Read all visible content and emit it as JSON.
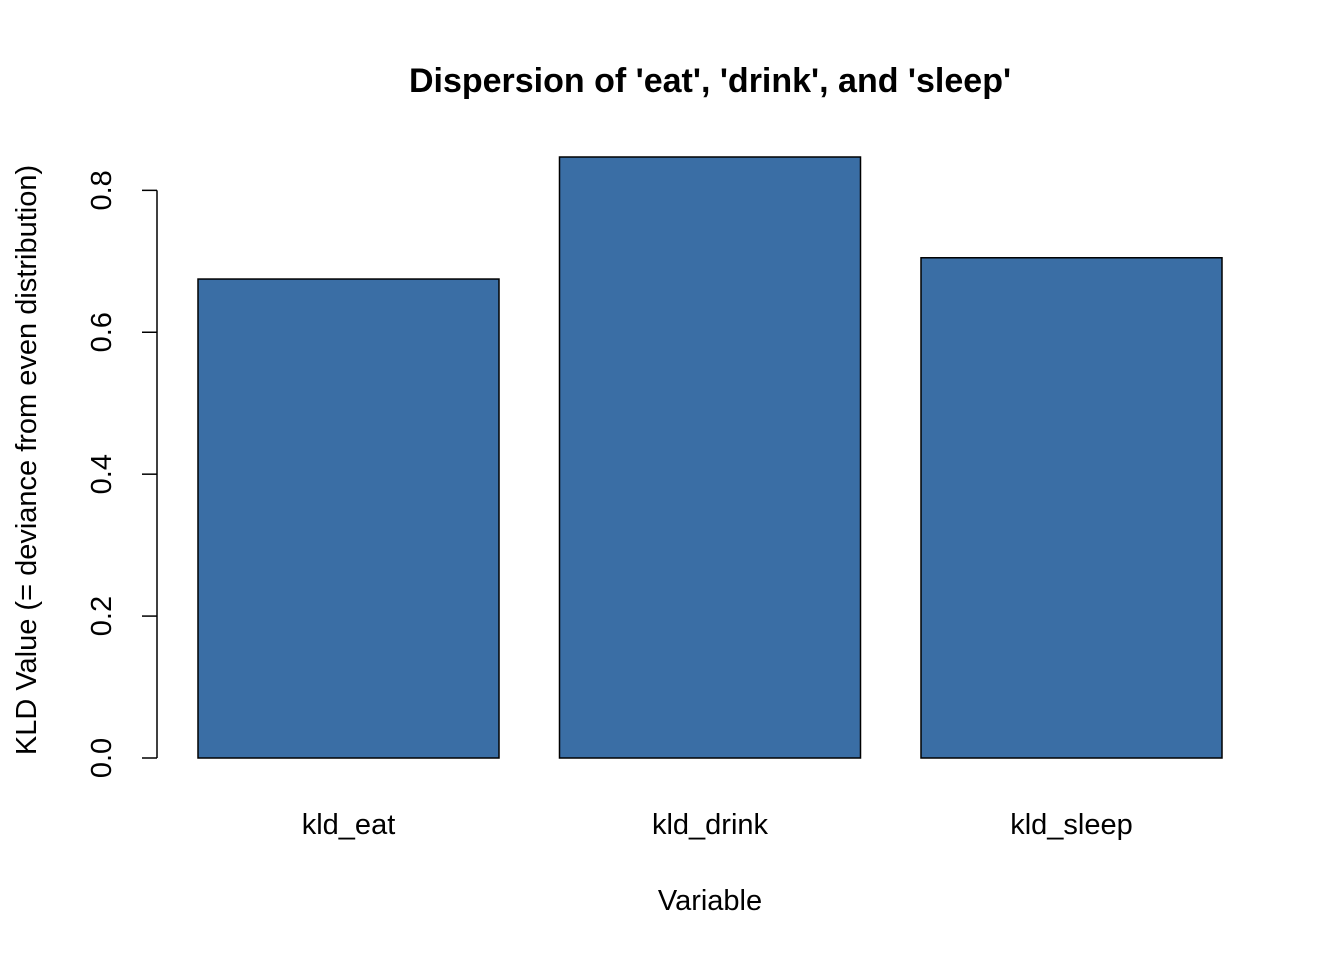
{
  "chart_data": {
    "type": "bar",
    "title": "Dispersion of 'eat', 'drink', and 'sleep'",
    "xlabel": "Variable",
    "ylabel": "KLD Value (= deviance from even distribution)",
    "categories": [
      "kld_eat",
      "kld_drink",
      "kld_sleep"
    ],
    "values": [
      0.675,
      0.847,
      0.705
    ],
    "ylim": [
      0,
      0.847
    ],
    "yticks": [
      0.0,
      0.2,
      0.4,
      0.6,
      0.8
    ],
    "ytick_labels": [
      "0.0",
      "0.2",
      "0.4",
      "0.6",
      "0.8"
    ],
    "bar_color": "#3A6EA5",
    "grid": false,
    "legend": "none"
  }
}
